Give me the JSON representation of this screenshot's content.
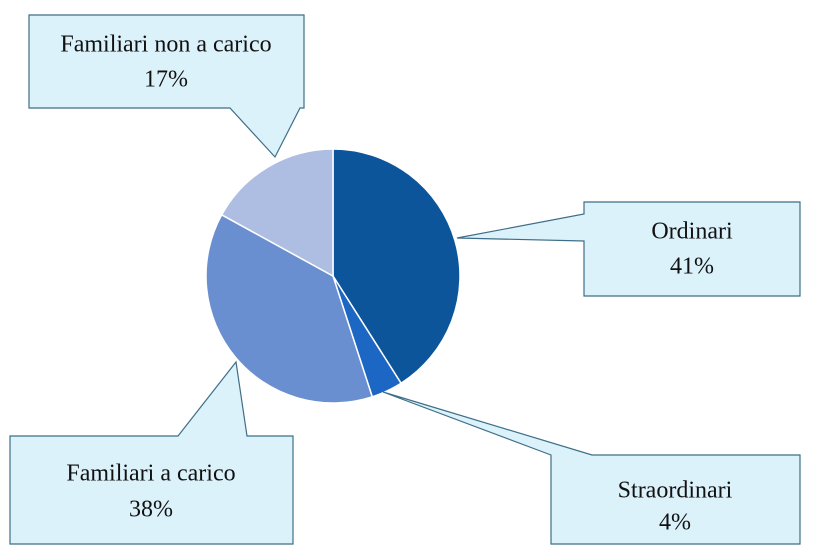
{
  "chart_data": {
    "type": "pie",
    "categories": [
      "Ordinari",
      "Straordinari",
      "Familiari a carico",
      "Familiari non a carico"
    ],
    "values": [
      41,
      4,
      38,
      17
    ],
    "value_labels": [
      "41%",
      "4%",
      "38%",
      "17%"
    ],
    "colors": [
      "#0c559b",
      "#1c67c4",
      "#6a8fd0",
      "#aebde2"
    ]
  }
}
